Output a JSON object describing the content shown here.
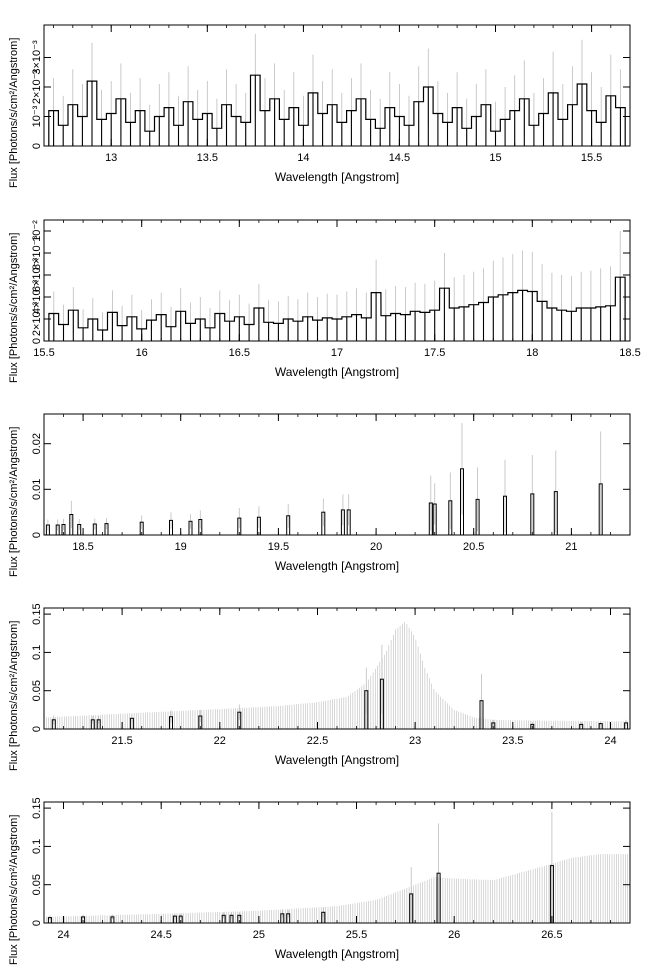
{
  "figure": {
    "xlabel": "Wavelength [Angstrom]",
    "ylabel": "Flux [Photons/s/cm²/Angstrom]"
  },
  "colors": {
    "data": "#000000",
    "error": "#bdbdbd",
    "frame": "#000000"
  },
  "chart_data": [
    {
      "type": "line",
      "xlim": [
        12.65,
        15.7
      ],
      "ylim": [
        0,
        0.0041
      ],
      "xticks": [
        "13",
        "13.5",
        "14",
        "14.5",
        "15",
        "15.5"
      ],
      "xtick_values": [
        13,
        13.5,
        14,
        14.5,
        15,
        15.5
      ],
      "yticks": [
        "0",
        "10⁻³",
        "2×10⁻³",
        "3×10⁻³"
      ],
      "ytick_values": [
        0,
        0.001,
        0.002,
        0.003
      ],
      "x": [
        12.7,
        12.75,
        12.8,
        12.85,
        12.9,
        12.95,
        13.0,
        13.05,
        13.1,
        13.15,
        13.2,
        13.25,
        13.3,
        13.35,
        13.4,
        13.45,
        13.5,
        13.55,
        13.6,
        13.65,
        13.7,
        13.75,
        13.8,
        13.85,
        13.9,
        13.95,
        14.0,
        14.05,
        14.1,
        14.15,
        14.2,
        14.25,
        14.3,
        14.35,
        14.4,
        14.45,
        14.5,
        14.55,
        14.6,
        14.65,
        14.7,
        14.75,
        14.8,
        14.85,
        14.9,
        14.95,
        15.0,
        15.05,
        15.1,
        15.15,
        15.2,
        15.25,
        15.3,
        15.35,
        15.4,
        15.45,
        15.5,
        15.55,
        15.6,
        15.65
      ],
      "y": [
        0.0012,
        0.0007,
        0.0014,
        0.001,
        0.0022,
        0.0009,
        0.0011,
        0.0016,
        0.0008,
        0.0012,
        0.0005,
        0.001,
        0.0013,
        0.0007,
        0.0015,
        0.0009,
        0.0011,
        0.0006,
        0.0014,
        0.001,
        0.0008,
        0.0024,
        0.0012,
        0.0016,
        0.0009,
        0.0013,
        0.0007,
        0.0018,
        0.0011,
        0.0014,
        0.0008,
        0.0012,
        0.0016,
        0.0009,
        0.0006,
        0.0013,
        0.001,
        0.0007,
        0.0015,
        0.002,
        0.0011,
        0.0008,
        0.0013,
        0.0006,
        0.001,
        0.0014,
        0.0005,
        0.0009,
        0.0012,
        0.0016,
        0.0007,
        0.0011,
        0.0018,
        0.0009,
        0.0014,
        0.0021,
        0.0012,
        0.0008,
        0.0017,
        0.0013
      ],
      "yerr": [
        0.0011,
        0.001,
        0.0012,
        0.0011,
        0.0013,
        0.001,
        0.0011,
        0.0012,
        0.001,
        0.0011,
        0.0009,
        0.0011,
        0.0012,
        0.001,
        0.0012,
        0.001,
        0.0011,
        0.001,
        0.0012,
        0.0011,
        0.001,
        0.0014,
        0.0011,
        0.0012,
        0.001,
        0.0012,
        0.001,
        0.0013,
        0.0011,
        0.0012,
        0.001,
        0.0011,
        0.0012,
        0.001,
        0.001,
        0.0012,
        0.0011,
        0.001,
        0.0012,
        0.0013,
        0.0011,
        0.001,
        0.0012,
        0.001,
        0.0011,
        0.0012,
        0.001,
        0.0011,
        0.0012,
        0.0013,
        0.0011,
        0.0012,
        0.0014,
        0.0012,
        0.0013,
        0.0015,
        0.0013,
        0.0012,
        0.0014,
        0.0013
      ]
    },
    {
      "type": "line",
      "xlim": [
        15.5,
        18.5
      ],
      "ylim": [
        0,
        0.011
      ],
      "xticks": [
        "15.5",
        "16",
        "16.5",
        "17",
        "17.5",
        "18",
        "18.5"
      ],
      "xtick_values": [
        15.5,
        16,
        16.5,
        17,
        17.5,
        18,
        18.5
      ],
      "yticks": [
        "0",
        "2×10⁻³",
        "4×10⁻³",
        "6×10⁻³",
        "8×10⁻³",
        "10⁻²"
      ],
      "ytick_values": [
        0,
        0.002,
        0.004,
        0.006,
        0.008,
        0.01
      ],
      "x": [
        15.55,
        15.6,
        15.65,
        15.7,
        15.75,
        15.8,
        15.85,
        15.9,
        15.95,
        16.0,
        16.05,
        16.1,
        16.15,
        16.2,
        16.25,
        16.3,
        16.35,
        16.4,
        16.45,
        16.5,
        16.55,
        16.6,
        16.65,
        16.7,
        16.75,
        16.8,
        16.85,
        16.9,
        16.95,
        17.0,
        17.05,
        17.1,
        17.15,
        17.2,
        17.25,
        17.3,
        17.35,
        17.4,
        17.45,
        17.5,
        17.55,
        17.6,
        17.65,
        17.7,
        17.75,
        17.8,
        17.85,
        17.9,
        17.95,
        18.0,
        18.05,
        18.1,
        18.15,
        18.2,
        18.25,
        18.3,
        18.35,
        18.4,
        18.45
      ],
      "y": [
        0.0025,
        0.0015,
        0.0028,
        0.0012,
        0.002,
        0.001,
        0.0026,
        0.0014,
        0.0022,
        0.0011,
        0.0019,
        0.0024,
        0.0013,
        0.0027,
        0.0016,
        0.002,
        0.0012,
        0.0025,
        0.0018,
        0.0022,
        0.0015,
        0.003,
        0.0017,
        0.0016,
        0.002,
        0.0018,
        0.0022,
        0.0019,
        0.0021,
        0.002,
        0.0022,
        0.0024,
        0.0021,
        0.0044,
        0.0023,
        0.0025,
        0.0024,
        0.0027,
        0.0026,
        0.0028,
        0.0048,
        0.003,
        0.0031,
        0.0033,
        0.0035,
        0.004,
        0.0042,
        0.0044,
        0.0046,
        0.0045,
        0.0036,
        0.003,
        0.0028,
        0.0027,
        0.003,
        0.003,
        0.0031,
        0.0032,
        0.0058
      ],
      "yerr": [
        0.002,
        0.0018,
        0.0021,
        0.0017,
        0.0019,
        0.0016,
        0.002,
        0.0018,
        0.002,
        0.0017,
        0.0019,
        0.002,
        0.0018,
        0.0021,
        0.0019,
        0.002,
        0.0018,
        0.0021,
        0.0019,
        0.002,
        0.0019,
        0.0022,
        0.002,
        0.002,
        0.0021,
        0.002,
        0.0022,
        0.0021,
        0.0022,
        0.0022,
        0.0023,
        0.0024,
        0.0023,
        0.003,
        0.0024,
        0.0025,
        0.0025,
        0.0026,
        0.0026,
        0.0027,
        0.0032,
        0.0028,
        0.0029,
        0.003,
        0.0031,
        0.0033,
        0.0034,
        0.0035,
        0.0036,
        0.0036,
        0.0034,
        0.0032,
        0.0032,
        0.0032,
        0.0033,
        0.0034,
        0.0035,
        0.0036,
        0.0042
      ]
    },
    {
      "type": "line",
      "xlim": [
        18.3,
        21.3
      ],
      "ylim": [
        0,
        0.0265
      ],
      "xticks": [
        "18.5",
        "19",
        "19.5",
        "20",
        "20.5",
        "21"
      ],
      "xtick_values": [
        18.5,
        19,
        19.5,
        20,
        20.5,
        21
      ],
      "yticks": [
        "0",
        "0.01",
        "0.02"
      ],
      "ytick_values": [
        0,
        0.01,
        0.02
      ],
      "x": [
        18.32,
        18.37,
        18.4,
        18.44,
        18.48,
        18.56,
        18.62,
        18.8,
        18.95,
        19.05,
        19.1,
        19.3,
        19.4,
        19.55,
        19.73,
        19.83,
        19.86,
        20.28,
        20.3,
        20.38,
        20.44,
        20.52,
        20.66,
        20.8,
        20.92,
        21.15
      ],
      "y": [
        0.0022,
        0.0022,
        0.0023,
        0.0045,
        0.0023,
        0.0024,
        0.0025,
        0.0028,
        0.0032,
        0.003,
        0.0034,
        0.0037,
        0.0039,
        0.0042,
        0.005,
        0.0055,
        0.0055,
        0.007,
        0.0068,
        0.0075,
        0.0145,
        0.0078,
        0.0085,
        0.009,
        0.0095,
        0.0112
      ],
      "yerr": [
        0.0012,
        0.0012,
        0.0012,
        0.003,
        0.0012,
        0.0012,
        0.0012,
        0.0015,
        0.0018,
        0.0016,
        0.002,
        0.0022,
        0.0024,
        0.0026,
        0.003,
        0.0034,
        0.0034,
        0.006,
        0.0045,
        0.0062,
        0.01,
        0.007,
        0.008,
        0.0085,
        0.009,
        0.0115
      ]
    },
    {
      "type": "line",
      "xlim": [
        21.1,
        24.1
      ],
      "ylim": [
        0,
        0.158
      ],
      "xticks": [
        "21.5",
        "22",
        "22.5",
        "23",
        "23.5",
        "24"
      ],
      "xtick_values": [
        21.5,
        22,
        22.5,
        23,
        23.5,
        24
      ],
      "yticks": [
        "0",
        "0.05",
        "0.1",
        "0.15"
      ],
      "ytick_values": [
        0,
        0.05,
        0.1,
        0.15
      ],
      "x": [
        21.15,
        21.35,
        21.38,
        21.55,
        21.75,
        21.9,
        22.1,
        22.75,
        22.83,
        23.34,
        23.4,
        23.6,
        23.85,
        23.95,
        24.08
      ],
      "y": [
        0.012,
        0.012,
        0.012,
        0.014,
        0.016,
        0.017,
        0.022,
        0.05,
        0.065,
        0.037,
        0.008,
        0.006,
        0.006,
        0.007,
        0.008
      ],
      "yerr": [
        0.006,
        0.005,
        0.005,
        0.006,
        0.008,
        0.008,
        0.01,
        0.03,
        0.045,
        0.035,
        0.004,
        0.003,
        0.003,
        0.003,
        0.004
      ],
      "envelope_x": [
        21.1,
        21.5,
        22.0,
        22.3,
        22.5,
        22.65,
        22.75,
        22.85,
        22.9,
        22.95,
        23.0,
        23.05,
        23.1,
        23.2,
        23.3,
        23.4,
        23.6,
        24.1
      ],
      "envelope_y": [
        0.015,
        0.02,
        0.026,
        0.03,
        0.035,
        0.042,
        0.06,
        0.1,
        0.13,
        0.14,
        0.12,
        0.08,
        0.05,
        0.025,
        0.015,
        0.012,
        0.011,
        0.01
      ]
    },
    {
      "type": "line",
      "xlim": [
        23.9,
        26.9
      ],
      "ylim": [
        0,
        0.158
      ],
      "xticks": [
        "24",
        "24.5",
        "25",
        "25.5",
        "26",
        "26.5"
      ],
      "xtick_values": [
        24,
        24.5,
        25,
        25.5,
        26,
        26.5
      ],
      "yticks": [
        "0",
        "0.05",
        "0.1",
        "0.15"
      ],
      "ytick_values": [
        0,
        0.05,
        0.1,
        0.15
      ],
      "x": [
        23.93,
        24.1,
        24.25,
        24.57,
        24.6,
        24.82,
        24.86,
        24.9,
        25.12,
        25.15,
        25.33,
        25.78,
        25.92,
        26.5
      ],
      "y": [
        0.007,
        0.008,
        0.008,
        0.009,
        0.009,
        0.01,
        0.01,
        0.01,
        0.012,
        0.012,
        0.014,
        0.038,
        0.065,
        0.075
      ],
      "yerr": [
        0.003,
        0.003,
        0.003,
        0.003,
        0.003,
        0.004,
        0.004,
        0.004,
        0.005,
        0.005,
        0.006,
        0.035,
        0.065,
        0.07
      ],
      "envelope_x": [
        23.9,
        24.5,
        25.0,
        25.4,
        25.6,
        25.8,
        25.9,
        26.0,
        26.2,
        26.4,
        26.6,
        26.75,
        26.9
      ],
      "envelope_y": [
        0.008,
        0.012,
        0.016,
        0.022,
        0.03,
        0.05,
        0.06,
        0.058,
        0.056,
        0.07,
        0.085,
        0.09,
        0.09
      ]
    }
  ]
}
